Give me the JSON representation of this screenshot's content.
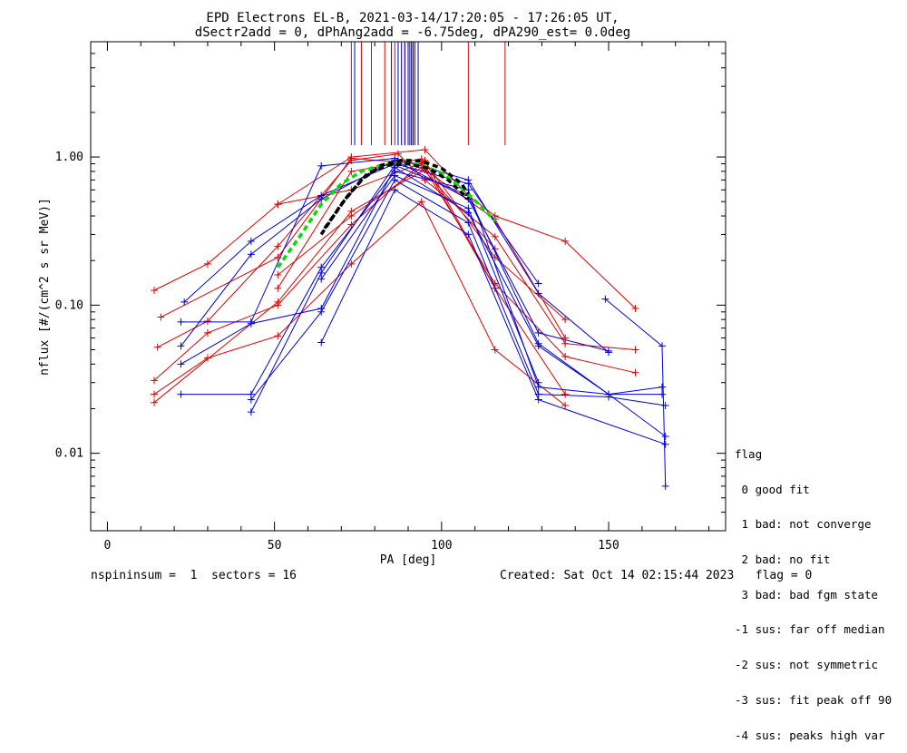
{
  "title_line1": "EPD Electrons EL-B, 2021-03-14/17:20:05 - 17:26:05 UT,",
  "title_line2": "dSectr2add = 0, dPhAng2add = -6.75deg, dPA290_est=   0.0deg",
  "footer_left": "nspininsum =  1  sectors = 16",
  "footer_right": "Created: Sat Oct 14 02:15:44 2023   flag = 0",
  "legend": {
    "title": "flag",
    "items": [
      " 0 good fit",
      " 1 bad: not converge",
      " 2 bad: no fit",
      " 3 bad: bad fgm state",
      "-1 sus: far off median",
      "-2 sus: not symmetric",
      "-3 sus: fit peak off 90",
      "-4 sus: peaks high var"
    ]
  },
  "colors": {
    "red": "#e00000",
    "blue": "#0000e0",
    "green": "#00e000",
    "fit": "#000000"
  },
  "chart_data": {
    "type": "line",
    "xlabel": "PA [deg]",
    "ylabel": "nflux [#/(cm^2 s sr MeV)]",
    "xlim": [
      -5,
      185
    ],
    "ylim": [
      0.003,
      6
    ],
    "yscale": "log",
    "xticks": [
      0,
      50,
      100,
      150
    ],
    "xtick_labels": [
      "0",
      "50",
      "100",
      "150"
    ],
    "yticks": [
      0.01,
      0.1,
      1
    ],
    "ytick_labels": [
      "0.01",
      "0.10",
      "1.00"
    ],
    "peak_lines": {
      "red": [
        73,
        76,
        79,
        83,
        86,
        89,
        91,
        108,
        119
      ],
      "blue": [
        74,
        85,
        87,
        88,
        89,
        90,
        90.5,
        91,
        91.5,
        92,
        93
      ]
    },
    "series": [
      {
        "color": "red",
        "points": [
          [
            14,
            0.126
          ],
          [
            30,
            0.19
          ],
          [
            51,
            0.48
          ],
          [
            73,
            1.0
          ],
          [
            95,
            1.12
          ],
          [
            108,
            0.55
          ],
          [
            116,
            0.4
          ],
          [
            137,
            0.27
          ],
          [
            158,
            0.095
          ]
        ]
      },
      {
        "color": "red",
        "points": [
          [
            15,
            0.052
          ],
          [
            30,
            0.078
          ],
          [
            51,
            0.25
          ],
          [
            73,
            0.95
          ],
          [
            87,
            1.05
          ],
          [
            95,
            0.7
          ],
          [
            116,
            0.29
          ],
          [
            137,
            0.055
          ],
          [
            158,
            0.05
          ]
        ]
      },
      {
        "color": "red",
        "points": [
          [
            16,
            0.083
          ],
          [
            51,
            0.21
          ],
          [
            73,
            0.98
          ],
          [
            94,
            0.9
          ],
          [
            116,
            0.14
          ],
          [
            137,
            0.045
          ],
          [
            158,
            0.035
          ]
        ]
      },
      {
        "color": "red",
        "points": [
          [
            14,
            0.031
          ],
          [
            30,
            0.065
          ],
          [
            51,
            0.1
          ],
          [
            73,
            0.35
          ],
          [
            95,
            0.95
          ],
          [
            116,
            0.13
          ],
          [
            137,
            0.025
          ]
        ]
      },
      {
        "color": "red",
        "points": [
          [
            14,
            0.025
          ],
          [
            30,
            0.044
          ],
          [
            51,
            0.062
          ],
          [
            73,
            0.19
          ],
          [
            94,
            0.5
          ],
          [
            116,
            0.05
          ],
          [
            137,
            0.021
          ]
        ]
      },
      {
        "color": "red",
        "points": [
          [
            14,
            0.022
          ],
          [
            51,
            0.105
          ],
          [
            73,
            0.43
          ],
          [
            95,
            0.82
          ],
          [
            116,
            0.38
          ],
          [
            137,
            0.06
          ]
        ]
      },
      {
        "color": "red",
        "points": [
          [
            51,
            0.48
          ],
          [
            73,
            0.6
          ],
          [
            95,
            0.93
          ],
          [
            116,
            0.21
          ],
          [
            137,
            0.08
          ]
        ]
      },
      {
        "color": "red",
        "points": [
          [
            51,
            0.13
          ],
          [
            73,
            0.8
          ],
          [
            94,
            0.97
          ],
          [
            116,
            0.13
          ]
        ]
      },
      {
        "color": "red",
        "points": [
          [
            51,
            0.16
          ],
          [
            73,
            0.4
          ],
          [
            94,
            0.85
          ],
          [
            116,
            0.24
          ]
        ]
      },
      {
        "color": "blue",
        "points": [
          [
            23,
            0.105
          ],
          [
            43,
            0.27
          ],
          [
            64,
            0.55
          ],
          [
            86,
            0.9
          ],
          [
            108,
            0.66
          ],
          [
            129,
            0.14
          ]
        ]
      },
      {
        "color": "blue",
        "points": [
          [
            22,
            0.077
          ],
          [
            43,
            0.077
          ],
          [
            64,
            0.87
          ],
          [
            86,
            0.98
          ],
          [
            108,
            0.7
          ],
          [
            129,
            0.12
          ],
          [
            150,
            0.048
          ]
        ]
      },
      {
        "color": "blue",
        "points": [
          [
            22,
            0.053
          ],
          [
            43,
            0.22
          ],
          [
            64,
            0.52
          ],
          [
            86,
            0.95
          ],
          [
            108,
            0.52
          ],
          [
            129,
            0.065
          ],
          [
            150,
            0.049
          ]
        ]
      },
      {
        "color": "blue",
        "points": [
          [
            22,
            0.04
          ],
          [
            43,
            0.075
          ],
          [
            64,
            0.095
          ],
          [
            86,
            0.85
          ],
          [
            108,
            0.42
          ],
          [
            129,
            0.053
          ],
          [
            150,
            0.025
          ],
          [
            166,
            0.028
          ]
        ]
      },
      {
        "color": "blue",
        "points": [
          [
            22,
            0.025
          ],
          [
            43,
            0.025
          ],
          [
            64,
            0.18
          ],
          [
            86,
            0.8
          ],
          [
            108,
            0.6
          ],
          [
            129,
            0.028
          ],
          [
            150,
            0.025
          ],
          [
            166,
            0.025
          ]
        ]
      },
      {
        "color": "blue",
        "points": [
          [
            43,
            0.019
          ],
          [
            64,
            0.165
          ],
          [
            86,
            0.88
          ],
          [
            108,
            0.55
          ],
          [
            129,
            0.055
          ],
          [
            150,
            0.025
          ],
          [
            167,
            0.013
          ]
        ]
      },
      {
        "color": "blue",
        "points": [
          [
            43,
            0.023
          ],
          [
            64,
            0.09
          ],
          [
            86,
            0.7
          ],
          [
            108,
            0.36
          ],
          [
            129,
            0.025
          ],
          [
            150,
            0.024
          ],
          [
            167,
            0.021
          ]
        ]
      },
      {
        "color": "blue",
        "points": [
          [
            64,
            0.056
          ],
          [
            86,
            0.6
          ],
          [
            108,
            0.3
          ],
          [
            129,
            0.023
          ],
          [
            167,
            0.0115
          ]
        ]
      },
      {
        "color": "blue",
        "points": [
          [
            64,
            0.15
          ],
          [
            86,
            0.75
          ],
          [
            108,
            0.45
          ],
          [
            129,
            0.03
          ]
        ]
      },
      {
        "color": "blue",
        "points": [
          [
            149,
            0.11
          ],
          [
            166,
            0.053
          ],
          [
            167,
            0.006
          ]
        ]
      }
    ],
    "fit_curves": [
      {
        "color": "green",
        "style": "dashed",
        "points": [
          [
            51,
            0.18
          ],
          [
            58,
            0.3
          ],
          [
            64,
            0.48
          ],
          [
            70,
            0.66
          ],
          [
            76,
            0.8
          ],
          [
            82,
            0.88
          ],
          [
            88,
            0.91
          ],
          [
            94,
            0.88
          ],
          [
            100,
            0.78
          ],
          [
            106,
            0.62
          ],
          [
            112,
            0.46
          ],
          [
            116,
            0.37
          ]
        ]
      },
      {
        "color": "fit",
        "style": "dashed",
        "points": [
          [
            64,
            0.3
          ],
          [
            70,
            0.48
          ],
          [
            76,
            0.7
          ],
          [
            82,
            0.88
          ],
          [
            88,
            0.95
          ],
          [
            94,
            0.94
          ],
          [
            100,
            0.84
          ],
          [
            106,
            0.66
          ],
          [
            108,
            0.56
          ]
        ]
      },
      {
        "color": "fit",
        "style": "dashed",
        "points": [
          [
            65,
            0.33
          ],
          [
            72,
            0.55
          ],
          [
            78,
            0.78
          ],
          [
            84,
            0.88
          ],
          [
            90,
            0.9
          ],
          [
            96,
            0.84
          ],
          [
            102,
            0.7
          ],
          [
            108,
            0.52
          ]
        ]
      }
    ]
  }
}
